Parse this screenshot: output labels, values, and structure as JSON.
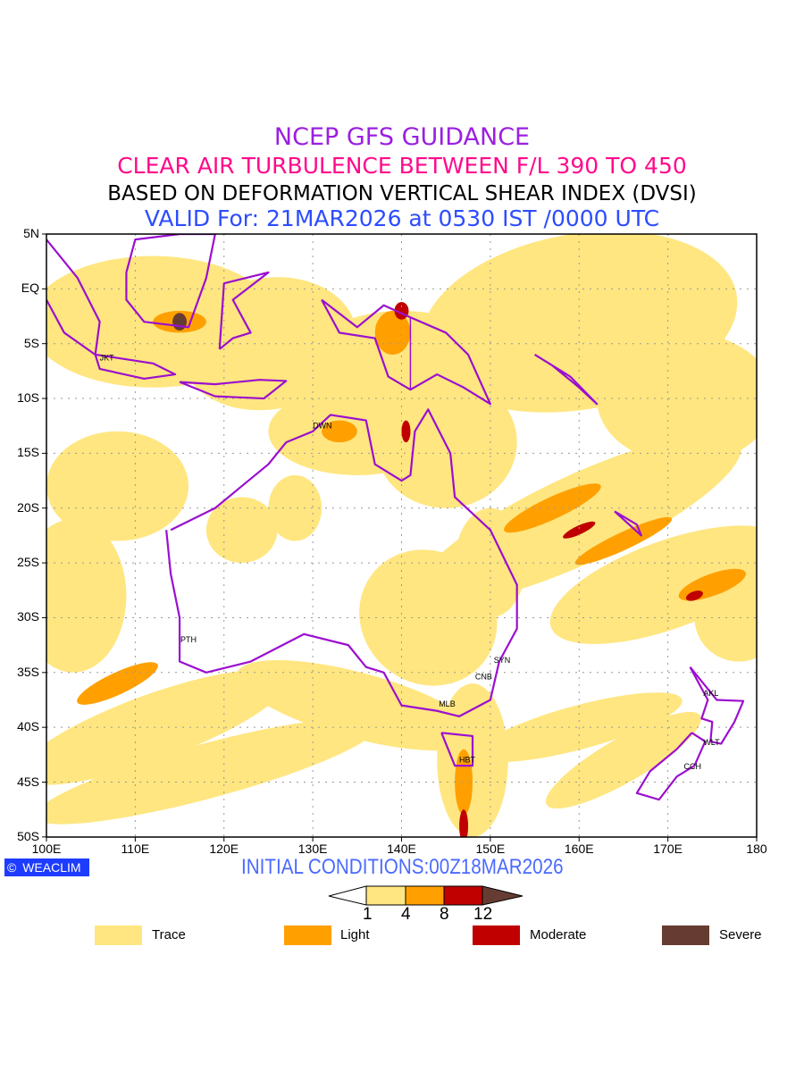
{
  "title": {
    "line1": "NCEP GFS GUIDANCE",
    "line2": "CLEAR AIR TURBULENCE BETWEEN F/L 390 TO 450",
    "line3": "BASED ON DEFORMATION VERTICAL SHEAR INDEX (DVSI)",
    "line4": "VALID For: 21MAR2026 at 0530 IST /0000 UTC"
  },
  "axes": {
    "lat_labels": [
      "5N",
      "EQ",
      "5S",
      "10S",
      "15S",
      "20S",
      "25S",
      "30S",
      "35S",
      "40S",
      "45S",
      "50S"
    ],
    "lon_labels": [
      "100E",
      "110E",
      "120E",
      "130E",
      "140E",
      "150E",
      "160E",
      "170E",
      "180"
    ]
  },
  "cities": [
    "JKT",
    "DWN",
    "PTH",
    "SYN",
    "CNB",
    "MLB",
    "HBT",
    "AKL",
    "WLT",
    "CCH"
  ],
  "footer": {
    "badge": "WEACLIM",
    "initial": "INITIAL CONDITIONS:00Z18MAR2026"
  },
  "colorbar": {
    "levels": [
      "1",
      "4",
      "8",
      "12"
    ],
    "colors": [
      "#ffe680",
      "#ffa000",
      "#c00000",
      "#663c32"
    ]
  },
  "legend": [
    {
      "label": "Trace",
      "color": "#ffe680"
    },
    {
      "label": "Light",
      "color": "#ffa000"
    },
    {
      "label": "Moderate",
      "color": "#c00000"
    },
    {
      "label": "Severe",
      "color": "#663c32"
    }
  ],
  "colors": {
    "coast": "#9b0fcf"
  }
}
